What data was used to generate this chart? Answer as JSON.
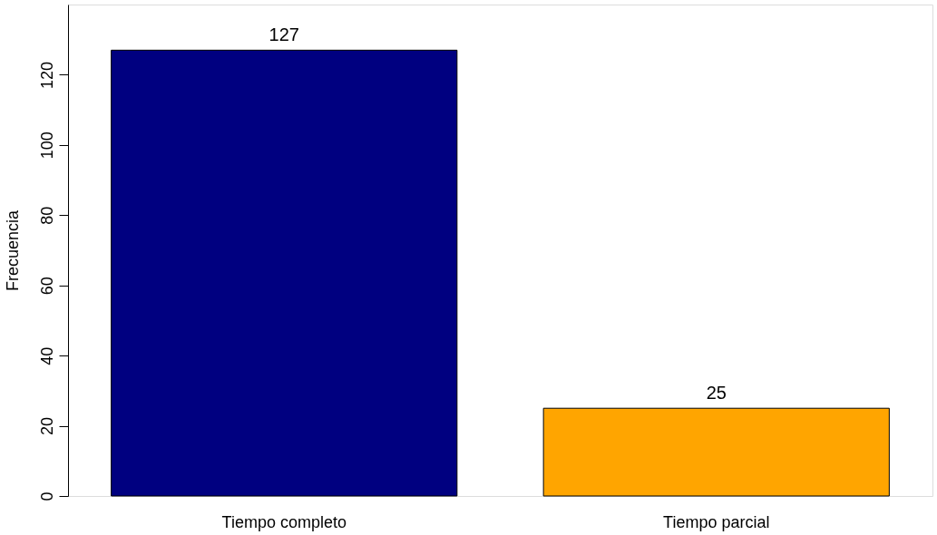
{
  "chart_data": {
    "type": "bar",
    "ylabel": "Frecuencia",
    "categories": [
      "Tiempo completo",
      "Tiempo parcial"
    ],
    "values": [
      127,
      25
    ],
    "colors": [
      "#000080",
      "#ffa500"
    ],
    "ylim": [
      0,
      140
    ],
    "yticks": [
      0,
      20,
      40,
      60,
      80,
      100,
      120
    ],
    "data_labels": true,
    "grid": false
  }
}
